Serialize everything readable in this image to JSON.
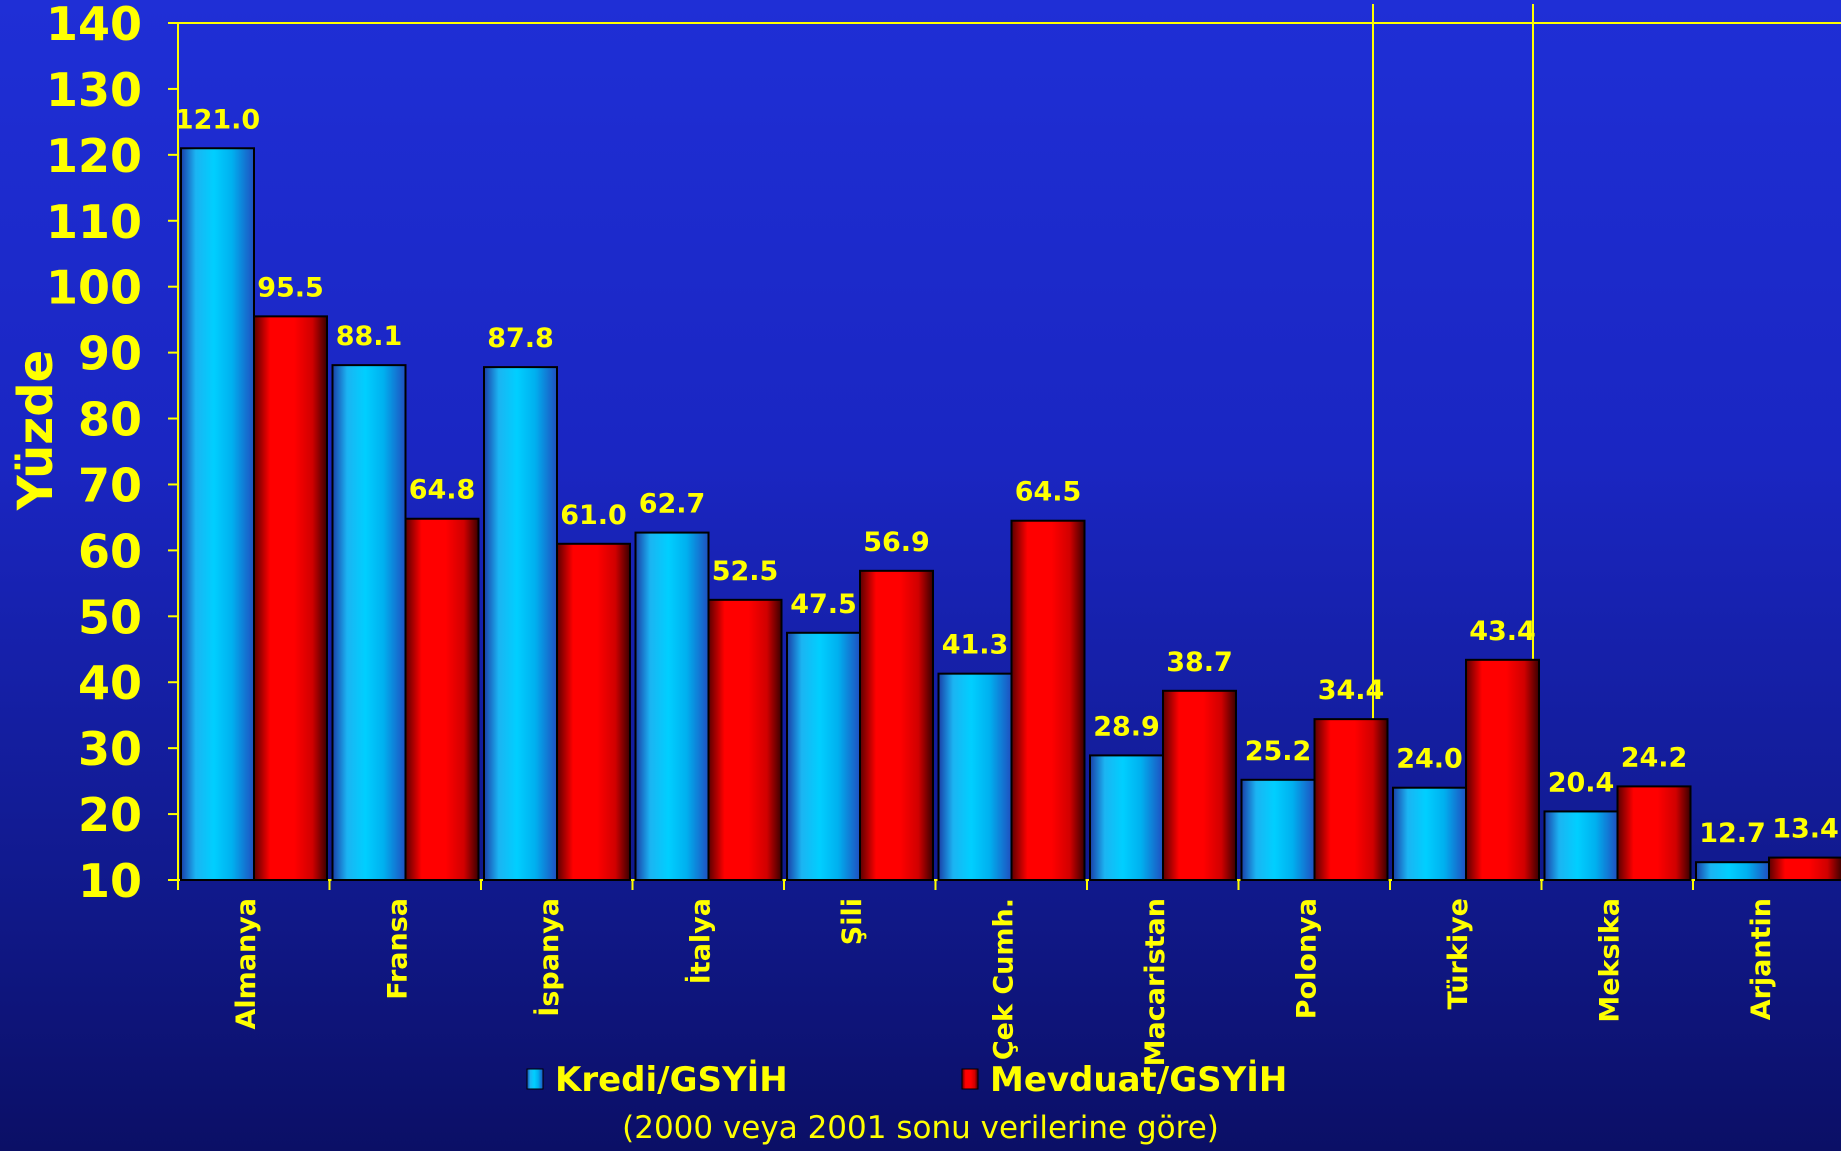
{
  "chart_data": {
    "type": "bar",
    "ylabel": "Yüzde",
    "ylim": [
      10,
      140
    ],
    "yticks": [
      10,
      20,
      30,
      40,
      50,
      60,
      70,
      80,
      90,
      100,
      110,
      120,
      130,
      140
    ],
    "categories": [
      "Almanya",
      "Fransa",
      "İspanya",
      "İtalya",
      "Şili",
      "Çek Cumh.",
      "Macaristan",
      "Polonya",
      "Türkiye",
      "Meksika",
      "Arjantin"
    ],
    "series": [
      {
        "name": "Kredi/GSYİH",
        "color": "#00c8ff",
        "values": [
          121.0,
          88.1,
          87.8,
          62.7,
          47.5,
          41.3,
          28.9,
          25.2,
          24.0,
          20.4,
          12.7
        ],
        "labels": [
          "121.0",
          "88.1",
          "87.8",
          "62.7",
          "47.5",
          "41.3",
          "28.9",
          "25.2",
          "24.0",
          "20.4",
          "12.7"
        ]
      },
      {
        "name": "Mevduat/GSYİH",
        "color": "#ff0000",
        "values": [
          95.5,
          64.8,
          61.0,
          52.5,
          56.9,
          64.5,
          38.7,
          34.4,
          43.4,
          24.2,
          13.4
        ],
        "labels": [
          "95.5",
          "64.8",
          "61.0",
          "52.5",
          "56.9",
          "64.5",
          "38.7",
          "34.4",
          "43.4",
          "24.2",
          "13.4"
        ]
      }
    ],
    "grid": false,
    "legend": "bottom-center",
    "annotation": "(2000 veya 2001 sonu verilerine göre)",
    "axis_color": "#ffff00",
    "text_color": "#ffff00"
  }
}
